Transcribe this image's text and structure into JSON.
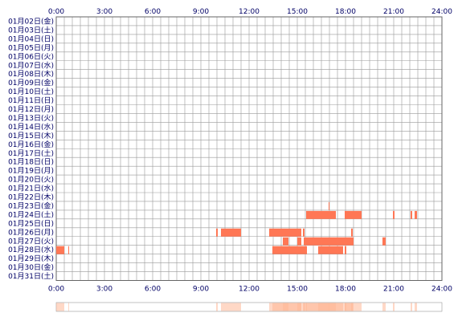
{
  "chart_data": {
    "type": "heatmap",
    "title": "",
    "xlabel": "",
    "ylabel": "",
    "x_ticks": [
      "0:00",
      "3:00",
      "6:00",
      "9:00",
      "12:00",
      "15:00",
      "18:00",
      "21:00",
      "24:00"
    ],
    "x_range_hours": [
      0,
      24
    ],
    "grid": true,
    "rows": [
      "01月02日(金)",
      "01月03日(土)",
      "01月04日(日)",
      "01月05日(月)",
      "01月06日(火)",
      "01月07日(水)",
      "01月08日(木)",
      "01月09日(金)",
      "01月10日(土)",
      "01月11日(日)",
      "01月12日(月)",
      "01月13日(火)",
      "01月14日(水)",
      "01月15日(木)",
      "01月16日(金)",
      "01月17日(土)",
      "01月18日(日)",
      "01月19日(月)",
      "01月20日(火)",
      "01月21日(水)",
      "01月22日(木)",
      "01月23日(金)",
      "01月24日(土)",
      "01月25日(日)",
      "01月26日(月)",
      "01月27日(火)",
      "01月28日(水)",
      "01月29日(木)",
      "01月30日(金)",
      "01月31日(土)"
    ],
    "activity": [
      {
        "row": 21,
        "start": 16.95,
        "end": 17.0
      },
      {
        "row": 22,
        "start": 15.55,
        "end": 17.4
      },
      {
        "row": 22,
        "start": 17.95,
        "end": 19.0
      },
      {
        "row": 22,
        "start": 20.95,
        "end": 21.05
      },
      {
        "row": 22,
        "start": 22.05,
        "end": 22.15
      },
      {
        "row": 22,
        "start": 22.3,
        "end": 22.45
      },
      {
        "row": 24,
        "start": 9.95,
        "end": 10.05
      },
      {
        "row": 24,
        "start": 10.25,
        "end": 11.5
      },
      {
        "row": 24,
        "start": 13.25,
        "end": 15.25
      },
      {
        "row": 24,
        "start": 15.35,
        "end": 15.45
      },
      {
        "row": 24,
        "start": 18.35,
        "end": 18.45
      },
      {
        "row": 25,
        "start": 14.1,
        "end": 14.45
      },
      {
        "row": 25,
        "start": 15.0,
        "end": 15.25
      },
      {
        "row": 25,
        "start": 15.4,
        "end": 18.5
      },
      {
        "row": 25,
        "start": 20.3,
        "end": 20.5
      },
      {
        "row": 26,
        "start": 0.0,
        "end": 0.5
      },
      {
        "row": 26,
        "start": 0.75,
        "end": 0.8
      },
      {
        "row": 26,
        "start": 13.45,
        "end": 15.6
      },
      {
        "row": 26,
        "start": 16.3,
        "end": 17.85
      },
      {
        "row": 26,
        "start": 17.95,
        "end": 18.05
      }
    ],
    "colors": {
      "background": "#ffffff",
      "grid": "#999999",
      "border": "#666666",
      "activity": "#ff7755",
      "text": "#000066",
      "density_base": "#fff4ec",
      "density_peak": "#ffb898"
    }
  }
}
